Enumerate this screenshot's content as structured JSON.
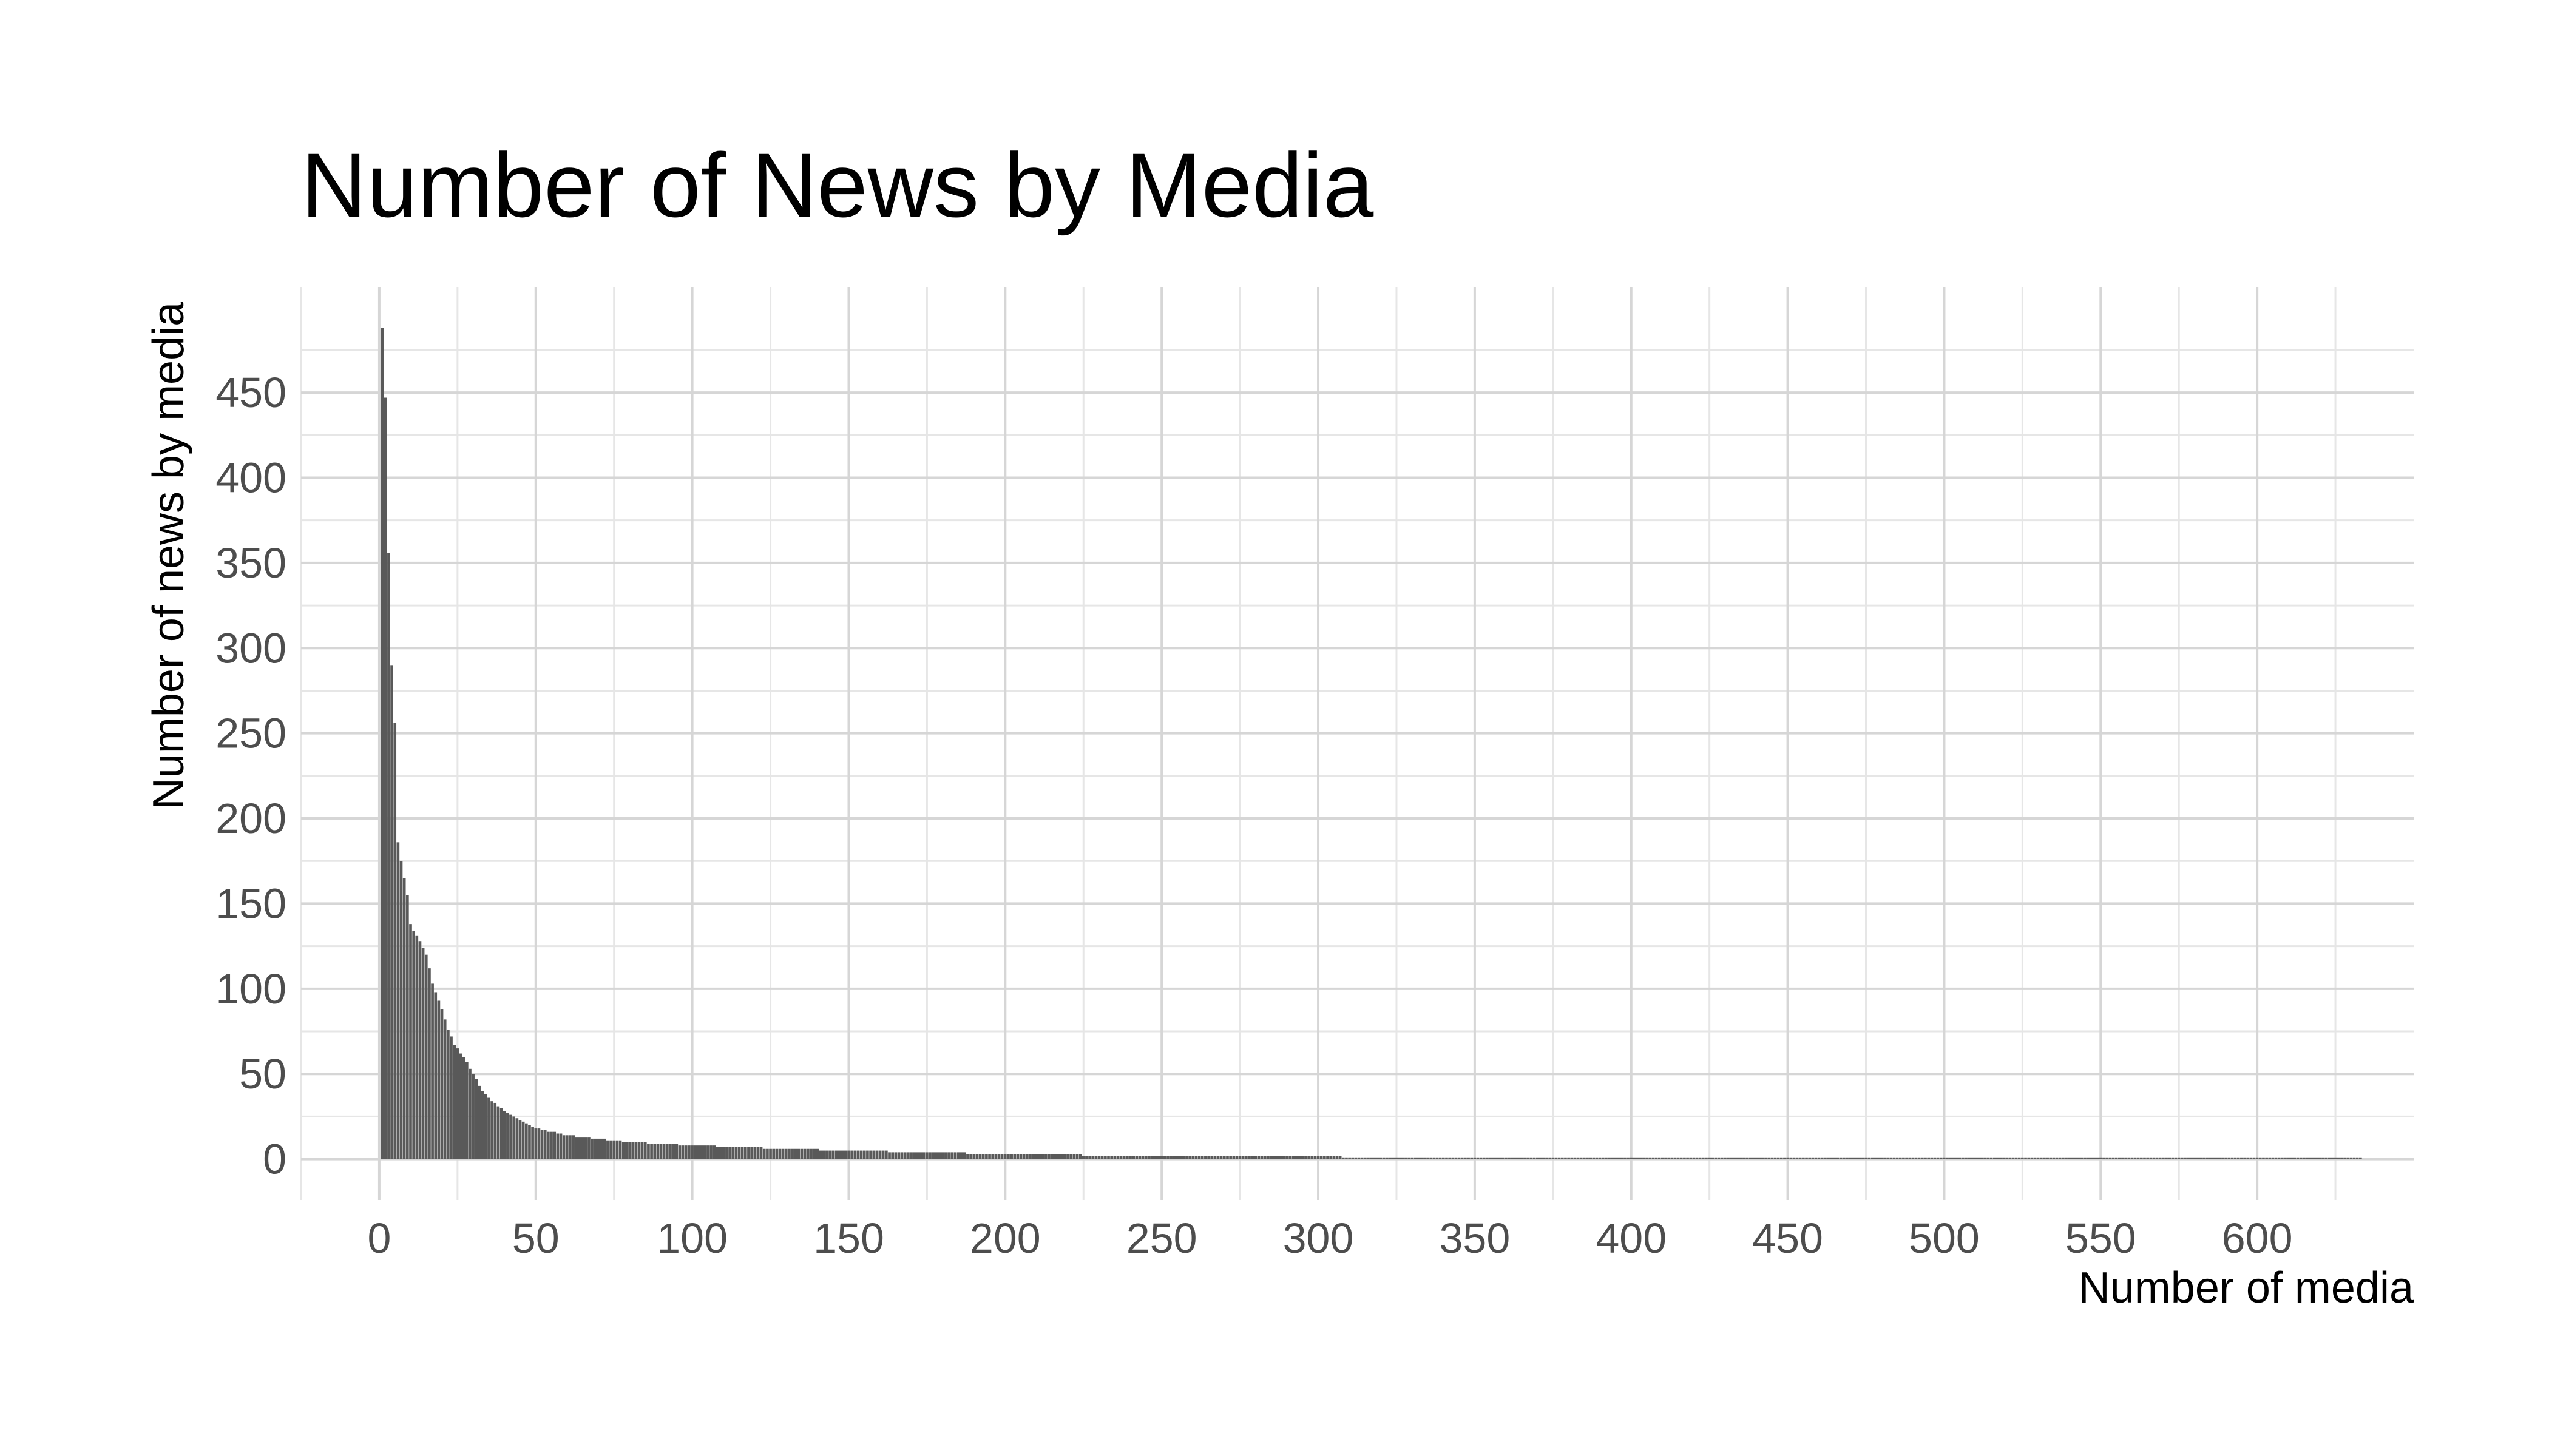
{
  "chart_data": {
    "type": "bar",
    "title": "Number of News by Media",
    "xlabel": "Number of media",
    "ylabel": "Number of news by media",
    "xlim": [
      -25,
      650
    ],
    "ylim": [
      -24,
      512
    ],
    "xticks": [
      0,
      50,
      100,
      150,
      200,
      250,
      300,
      350,
      400,
      450,
      500,
      550,
      600
    ],
    "yticks": [
      0,
      50,
      100,
      150,
      200,
      250,
      300,
      350,
      400,
      450
    ],
    "grid": true,
    "legend": "none",
    "bar_color": "#595959",
    "n_bars": 633,
    "segments": [
      {
        "x": 1,
        "y": 488
      },
      {
        "x": 2,
        "y": 447
      },
      {
        "x": 3,
        "y": 356
      },
      {
        "x": 4,
        "y": 290
      },
      {
        "x": 5,
        "y": 256
      },
      {
        "x": 6,
        "y": 186
      },
      {
        "x": 7,
        "y": 175
      },
      {
        "x": 8,
        "y": 165
      },
      {
        "x": 9,
        "y": 155
      },
      {
        "x": 10,
        "y": 138
      },
      {
        "x": 11,
        "y": 134
      },
      {
        "x": 12,
        "y": 131
      },
      {
        "x": 13,
        "y": 128
      },
      {
        "x": 15,
        "y": 120
      },
      {
        "x": 17,
        "y": 103
      },
      {
        "x": 20,
        "y": 88
      },
      {
        "x": 22,
        "y": 76
      },
      {
        "x": 24,
        "y": 67
      },
      {
        "x": 27,
        "y": 60
      },
      {
        "x": 30,
        "y": 50
      },
      {
        "x": 33,
        "y": 40
      },
      {
        "x": 36,
        "y": 34
      },
      {
        "x": 40,
        "y": 28
      },
      {
        "x": 45,
        "y": 23
      },
      {
        "x": 50,
        "y": 18
      },
      {
        "x": 55,
        "y": 16
      },
      {
        "x": 60,
        "y": 14
      },
      {
        "x": 70,
        "y": 12
      },
      {
        "x": 80,
        "y": 10
      },
      {
        "x": 90,
        "y": 9
      },
      {
        "x": 100,
        "y": 8
      },
      {
        "x": 115,
        "y": 7
      },
      {
        "x": 130,
        "y": 6
      },
      {
        "x": 150,
        "y": 5
      },
      {
        "x": 175,
        "y": 4
      },
      {
        "x": 200,
        "y": 3
      },
      {
        "x": 224,
        "y": 3
      },
      {
        "x": 225,
        "y": 2
      },
      {
        "x": 307,
        "y": 2
      },
      {
        "x": 308,
        "y": 1
      },
      {
        "x": 633,
        "y": 1
      }
    ]
  }
}
